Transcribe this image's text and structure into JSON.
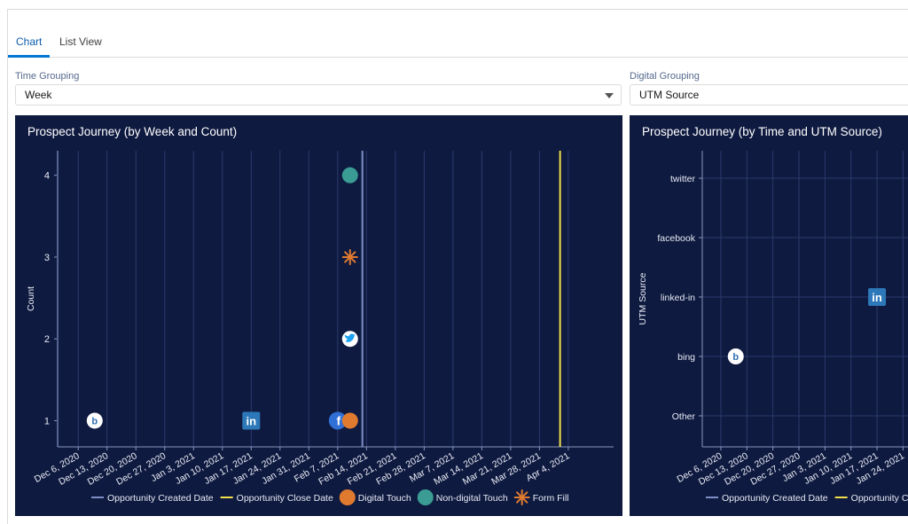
{
  "tabs": [
    {
      "label": "Chart",
      "active": true
    },
    {
      "label": "List View",
      "active": false
    }
  ],
  "time_grouping": {
    "label": "Time Grouping",
    "value": "Week"
  },
  "digital_grouping": {
    "label": "Digital Grouping",
    "value": "UTM Source"
  },
  "colors": {
    "panel_bg": "#0f1a40",
    "grid": "#2c3a6b",
    "opportunity_created": "#7d8fc4",
    "opportunity_close": "#f1e04a",
    "digital_touch": "#e07a2f",
    "non_digital_touch": "#3a9c94",
    "form_fill": "#e07a2f",
    "tab_active": "#0176d3"
  },
  "chart_data": [
    {
      "type": "scatter",
      "title": "Prospect Journey (by Week and Count)",
      "xlabel": "",
      "ylabel": "Count",
      "categories": [
        "Dec 6, 2020",
        "Dec 13, 2020",
        "Dec 20, 2020",
        "Dec 27, 2020",
        "Jan 3, 2021",
        "Jan 10, 2021",
        "Jan 17, 2021",
        "Jan 24, 2021",
        "Jan 31, 2021",
        "Feb 7, 2021",
        "Feb 14, 2021",
        "Feb 21, 2021",
        "Feb 28, 2021",
        "Mar 7, 2021",
        "Mar 14, 2021",
        "Mar 21, 2021",
        "Mar 28, 2021",
        "Apr 4, 2021"
      ],
      "y_ticks": [
        "1",
        "2",
        "3",
        "4"
      ],
      "grid": true,
      "legend_position": "bottom",
      "legend": [
        {
          "label": "Opportunity Created Date",
          "marker": "line",
          "color": "#7d8fc4"
        },
        {
          "label": "Opportunity Close Date",
          "marker": "line",
          "color": "#f1e04a"
        },
        {
          "label": "Digital Touch",
          "marker": "circle",
          "color": "#e07a2f"
        },
        {
          "label": "Non-digital Touch",
          "marker": "circle",
          "color": "#3a9c94"
        },
        {
          "label": "Form Fill",
          "marker": "asterisk",
          "color": "#e07a2f"
        }
      ],
      "vertical_lines": [
        {
          "name": "Opportunity Created Date",
          "x": "Feb 13, 2021",
          "color": "#7d8fc4"
        },
        {
          "name": "Opportunity Close Date",
          "x": "Apr 2, 2021",
          "color": "#f1e04a"
        }
      ],
      "points": [
        {
          "x": "Dec 10, 2020",
          "y": 1,
          "icon": "bing-icon",
          "series": "Digital Touch"
        },
        {
          "x": "Jan 17, 2021",
          "y": 1,
          "icon": "linkedin-icon",
          "series": "Digital Touch"
        },
        {
          "x": "Feb 7, 2021",
          "y": 1,
          "icon": "facebook-icon",
          "series": "Digital Touch"
        },
        {
          "x": "Feb 10, 2021",
          "y": 1,
          "icon": "circle",
          "series": "Digital Touch"
        },
        {
          "x": "Feb 10, 2021",
          "y": 2,
          "icon": "twitter-icon",
          "series": "Digital Touch"
        },
        {
          "x": "Feb 10, 2021",
          "y": 3,
          "icon": "asterisk",
          "series": "Form Fill"
        },
        {
          "x": "Feb 10, 2021",
          "y": 4,
          "icon": "circle",
          "series": "Non-digital Touch"
        }
      ]
    },
    {
      "type": "scatter",
      "title": "Prospect Journey (by Time and UTM Source)",
      "xlabel": "",
      "ylabel": "UTM Source",
      "categories": [
        "Dec 6, 2020",
        "Dec 13, 2020",
        "Dec 20, 2020",
        "Dec 27, 2020",
        "Jan 3, 2021",
        "Jan 10, 2021",
        "Jan 17, 2021",
        "Jan 24, 2021"
      ],
      "y_categories": [
        "Other",
        "bing",
        "linked-in",
        "facebook",
        "twitter"
      ],
      "grid": true,
      "legend_position": "bottom",
      "legend": [
        {
          "label": "Opportunity Created Date",
          "marker": "line",
          "color": "#7d8fc4"
        },
        {
          "label": "Opportunity Close Date",
          "marker": "line",
          "color": "#f1e04a"
        }
      ],
      "points": [
        {
          "x": "Dec 10, 2020",
          "y": "bing",
          "icon": "bing-icon"
        },
        {
          "x": "Jan 17, 2021",
          "y": "linked-in",
          "icon": "linkedin-icon"
        }
      ]
    }
  ]
}
